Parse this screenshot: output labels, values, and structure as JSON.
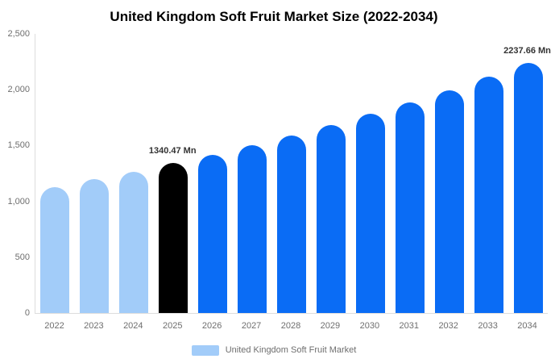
{
  "title": "United Kingdom Soft Fruit Market Size (2022-2034)",
  "legend": {
    "label": "United Kingdom Soft Fruit Market",
    "swatch_color": "#a2ccf9"
  },
  "colors": {
    "historical_bar": "#a2ccf9",
    "base_year_bar": "#000000",
    "forecast_bar": "#0a6cf5",
    "axis_line": "#dddddd",
    "axis_text": "#6e6e6e",
    "value_label_text": "#333333",
    "title_text": "#000000"
  },
  "chart_data": {
    "type": "bar",
    "title": "United Kingdom Soft Fruit Market Size (2022-2034)",
    "categories": [
      "2022",
      "2023",
      "2024",
      "2025",
      "2026",
      "2027",
      "2028",
      "2029",
      "2030",
      "2031",
      "2032",
      "2033",
      "2034"
    ],
    "values": [
      1130,
      1196,
      1266,
      1340.47,
      1419,
      1502,
      1590,
      1683,
      1782,
      1886,
      1997,
      2114,
      2237.66
    ],
    "unit": "Mn",
    "xlabel": "",
    "ylabel": "",
    "ylim": [
      0,
      2500
    ],
    "yticks": [
      {
        "value": 0,
        "label": "0"
      },
      {
        "value": 500,
        "label": "500"
      },
      {
        "value": 1000,
        "label": "1,000"
      },
      {
        "value": 1500,
        "label": "1,500"
      },
      {
        "value": 2000,
        "label": "2,000"
      },
      {
        "value": 2500,
        "label": "2,500"
      }
    ],
    "grid": false,
    "legend_position": "bottom",
    "bar_colors": [
      "#a2ccf9",
      "#a2ccf9",
      "#a2ccf9",
      "#000000",
      "#0a6cf5",
      "#0a6cf5",
      "#0a6cf5",
      "#0a6cf5",
      "#0a6cf5",
      "#0a6cf5",
      "#0a6cf5",
      "#0a6cf5",
      "#0a6cf5"
    ],
    "value_labels": [
      {
        "index": 3,
        "text": "1340.47 Mn"
      },
      {
        "index": 12,
        "text": "2237.66 Mn"
      }
    ]
  }
}
